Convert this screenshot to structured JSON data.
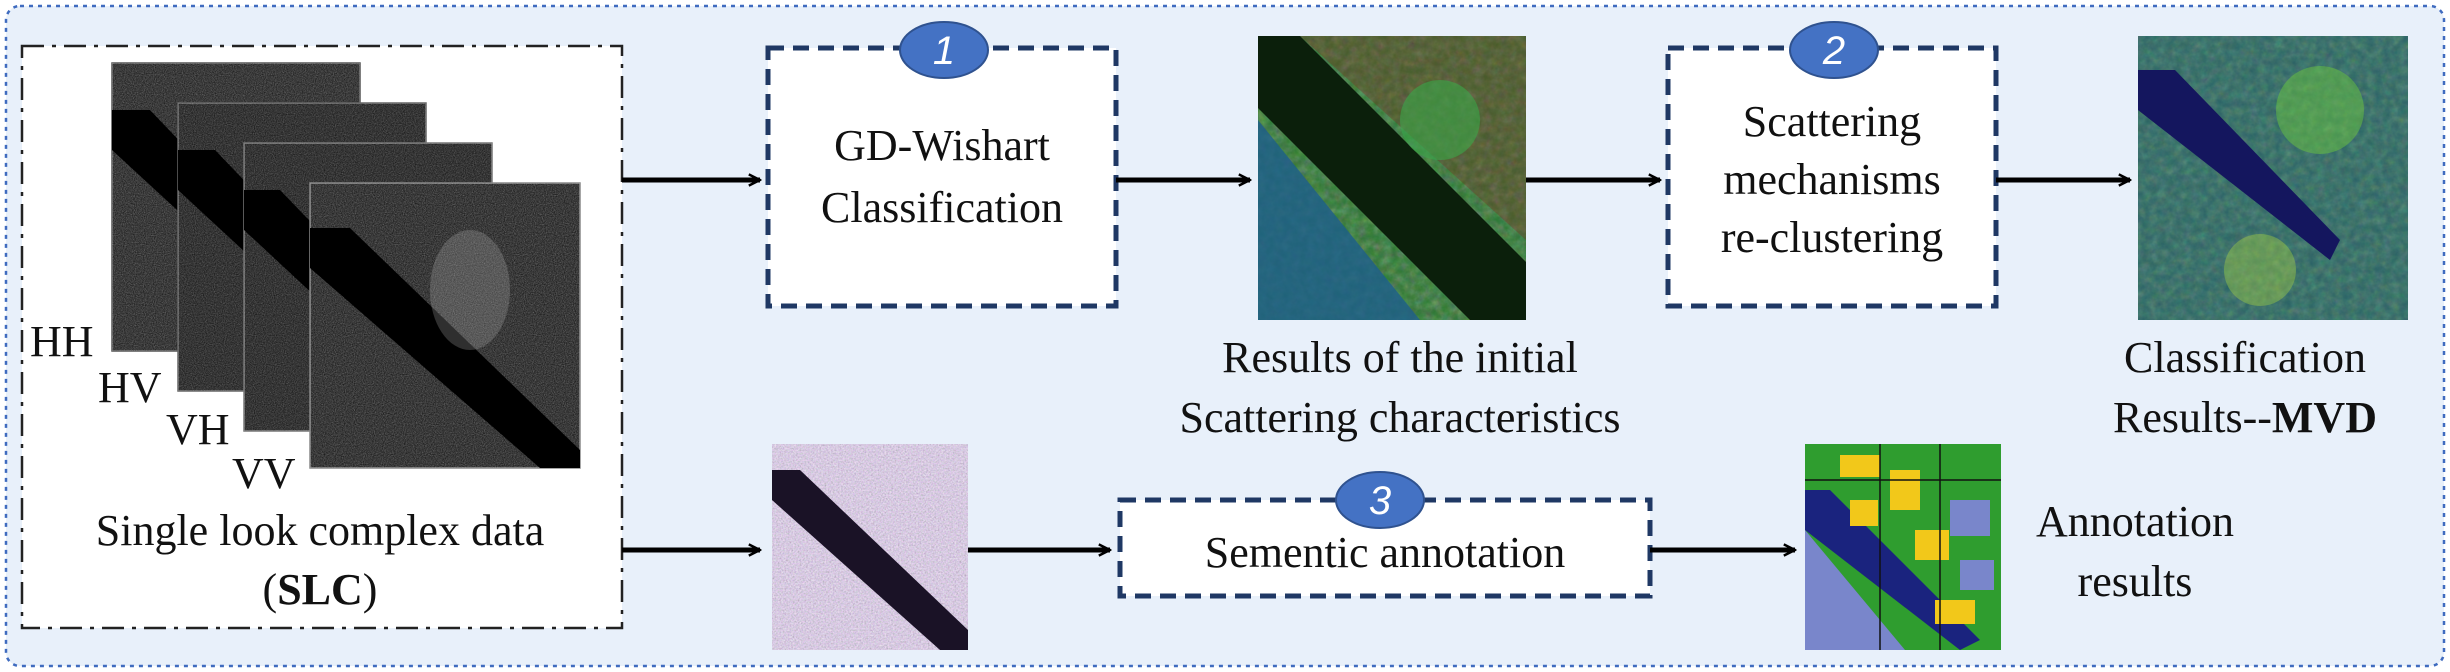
{
  "colors": {
    "panel_bg": "#e8f0fa",
    "panel_border": "#3f6bbf",
    "box_border": "#1f3864",
    "badge_fill": "#4472c4",
    "arrow": "#000000"
  },
  "input": {
    "polarizations": [
      "HH",
      "HV",
      "VH",
      "VV"
    ],
    "label_line1": "Single look complex data",
    "label_line2_open": "(",
    "label_line2_bold": "SLC",
    "label_line2_close": ")"
  },
  "steps": [
    {
      "number": "1",
      "line1": "GD-Wishart",
      "line2": "Classification"
    },
    {
      "number": "2",
      "line1": "Scattering",
      "line2": "mechanisms",
      "line3": "re-clustering"
    },
    {
      "number": "3",
      "line1": "Sementic annotation"
    }
  ],
  "outputs": {
    "initial_line1": "Results of the initial",
    "initial_line2": "Scattering characteristics",
    "classification_line1": "Classification",
    "classification_line2_prefix": "Results--",
    "classification_line2_bold": "MVD",
    "annotation_line1": "Annotation",
    "annotation_line2": "results"
  },
  "icons": {
    "slc_stack": "sar-image-stack-icon",
    "initial_map": "classification-map-icon",
    "final_map": "classification-map-icon",
    "pauli_image": "sar-rgb-image-icon",
    "annotation_map": "annotation-map-icon",
    "badge": "numbered-circle-icon",
    "arrow": "right-arrow-icon"
  }
}
